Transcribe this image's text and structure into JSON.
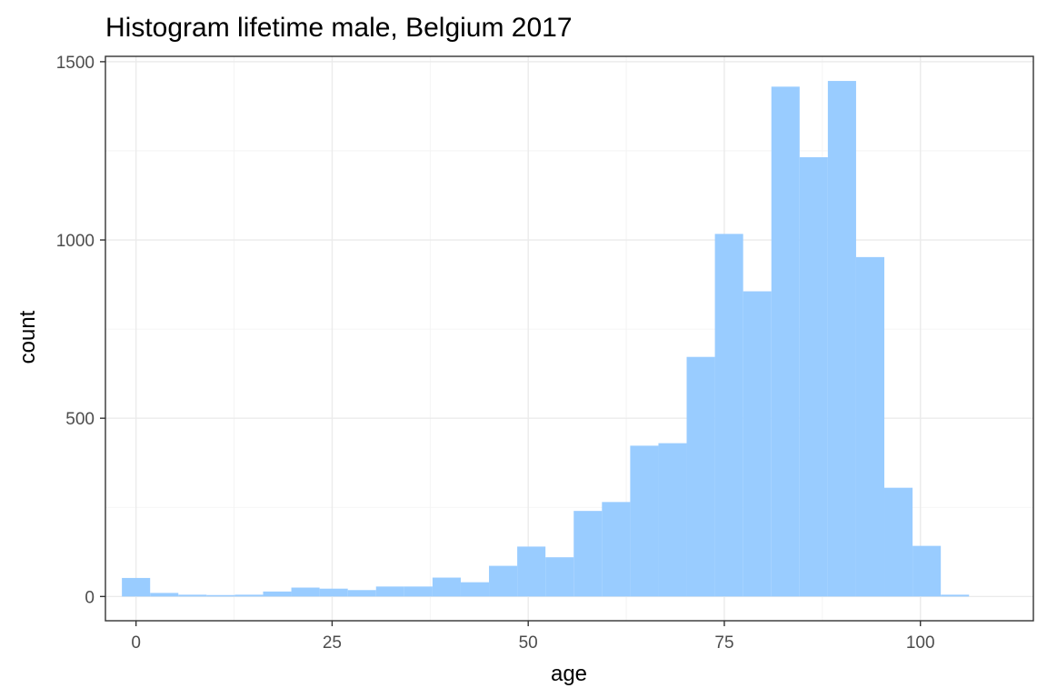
{
  "colors": {
    "bar_fill": "#99CCFF",
    "panel_border": "#333333",
    "grid": "#ebebeb",
    "tick_text": "#4d4d4d",
    "text": "#000000"
  },
  "chart_data": {
    "type": "bar",
    "title": "Histogram lifetime male, Belgium 2017",
    "xlabel": "age",
    "ylabel": "count",
    "xlim": [
      -3.9,
      114.4
    ],
    "ylim": [
      -68,
      1515
    ],
    "x_ticks": [
      0,
      25,
      50,
      75,
      100
    ],
    "x_tick_labels": [
      "0",
      "25",
      "50",
      "75",
      "100"
    ],
    "y_ticks": [
      0,
      500,
      1000,
      1500
    ],
    "y_tick_labels": [
      "0",
      "500",
      "1000",
      "1500"
    ],
    "grid": true,
    "bin_width": 3.6,
    "bins": [
      {
        "x0": -1.8,
        "x1": 1.8,
        "count": 52
      },
      {
        "x0": 1.8,
        "x1": 5.4,
        "count": 10
      },
      {
        "x0": 5.4,
        "x1": 9.0,
        "count": 5
      },
      {
        "x0": 9.0,
        "x1": 12.6,
        "count": 4
      },
      {
        "x0": 12.6,
        "x1": 16.2,
        "count": 5
      },
      {
        "x0": 16.2,
        "x1": 19.8,
        "count": 14
      },
      {
        "x0": 19.8,
        "x1": 23.4,
        "count": 25
      },
      {
        "x0": 23.4,
        "x1": 27.0,
        "count": 22
      },
      {
        "x0": 27.0,
        "x1": 30.6,
        "count": 18
      },
      {
        "x0": 30.6,
        "x1": 34.2,
        "count": 28
      },
      {
        "x0": 34.2,
        "x1": 37.8,
        "count": 28
      },
      {
        "x0": 37.8,
        "x1": 41.4,
        "count": 53
      },
      {
        "x0": 41.4,
        "x1": 45.0,
        "count": 40
      },
      {
        "x0": 45.0,
        "x1": 48.6,
        "count": 86
      },
      {
        "x0": 48.6,
        "x1": 52.2,
        "count": 140
      },
      {
        "x0": 52.2,
        "x1": 55.8,
        "count": 110
      },
      {
        "x0": 55.8,
        "x1": 59.4,
        "count": 240
      },
      {
        "x0": 59.4,
        "x1": 63.0,
        "count": 265
      },
      {
        "x0": 63.0,
        "x1": 66.6,
        "count": 423
      },
      {
        "x0": 66.6,
        "x1": 70.2,
        "count": 430
      },
      {
        "x0": 70.2,
        "x1": 73.8,
        "count": 672
      },
      {
        "x0": 73.8,
        "x1": 77.4,
        "count": 1017
      },
      {
        "x0": 77.4,
        "x1": 81.0,
        "count": 856
      },
      {
        "x0": 81.0,
        "x1": 84.6,
        "count": 1430
      },
      {
        "x0": 84.6,
        "x1": 88.2,
        "count": 1232
      },
      {
        "x0": 88.2,
        "x1": 91.8,
        "count": 1446
      },
      {
        "x0": 91.8,
        "x1": 95.4,
        "count": 952
      },
      {
        "x0": 95.4,
        "x1": 99.0,
        "count": 305
      },
      {
        "x0": 99.0,
        "x1": 102.6,
        "count": 142
      },
      {
        "x0": 102.6,
        "x1": 106.2,
        "count": 5
      }
    ]
  }
}
